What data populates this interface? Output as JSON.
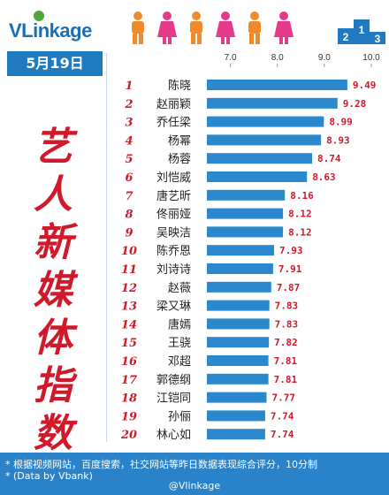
{
  "header": {
    "brand": "VLinkage",
    "date": "5月19日",
    "vertical_title": [
      "艺",
      "人",
      "新",
      "媒",
      "体",
      "指",
      "数"
    ],
    "podium_icon": "podium-icon",
    "people_icon": "people-icon"
  },
  "colors": {
    "bar": "#2b88cc",
    "rank": "#d0192a",
    "value": "#d0192a",
    "brand": "#1a6fb5",
    "footer": "#2a83c8"
  },
  "footer": {
    "note": "* 根据视频网站，百度搜索，社交网站等昨日数据表现综合评分，10分制",
    "source": "* (Data by Vbank)",
    "credit": "@Vlinkage"
  },
  "chart_data": {
    "type": "bar",
    "orientation": "horizontal",
    "xlim": [
      6.5,
      10.0
    ],
    "ticks": [
      "7.0",
      "8.0",
      "9.0",
      "10.0"
    ],
    "categories": [
      "陈晓",
      "赵丽颖",
      "乔任梁",
      "杨幂",
      "杨蓉",
      "刘恺威",
      "唐艺昕",
      "佟丽娅",
      "吴映洁",
      "陈乔恩",
      "刘诗诗",
      "赵薇",
      "梁又琳",
      "唐嫣",
      "王骁",
      "邓超",
      "郭德纲",
      "江铠同",
      "孙俪",
      "林心如"
    ],
    "ranks": [
      "1",
      "2",
      "3",
      "4",
      "5",
      "6",
      "7",
      "8",
      "9",
      "10",
      "11",
      "12",
      "13",
      "14",
      "15",
      "16",
      "17",
      "18",
      "19",
      "20"
    ],
    "values": [
      9.49,
      9.28,
      8.99,
      8.93,
      8.74,
      8.63,
      8.16,
      8.12,
      8.12,
      7.93,
      7.91,
      7.87,
      7.83,
      7.83,
      7.82,
      7.81,
      7.81,
      7.77,
      7.74,
      7.74
    ],
    "value_labels": [
      "9.49",
      "9.28",
      "8.99",
      "8.93",
      "8.74",
      "8.63",
      "8.16",
      "8.12",
      "8.12",
      "7.93",
      "7.91",
      "7.87",
      "7.83",
      "7.83",
      "7.82",
      "7.81",
      "7.81",
      "7.77",
      "7.74",
      "7.74"
    ]
  }
}
